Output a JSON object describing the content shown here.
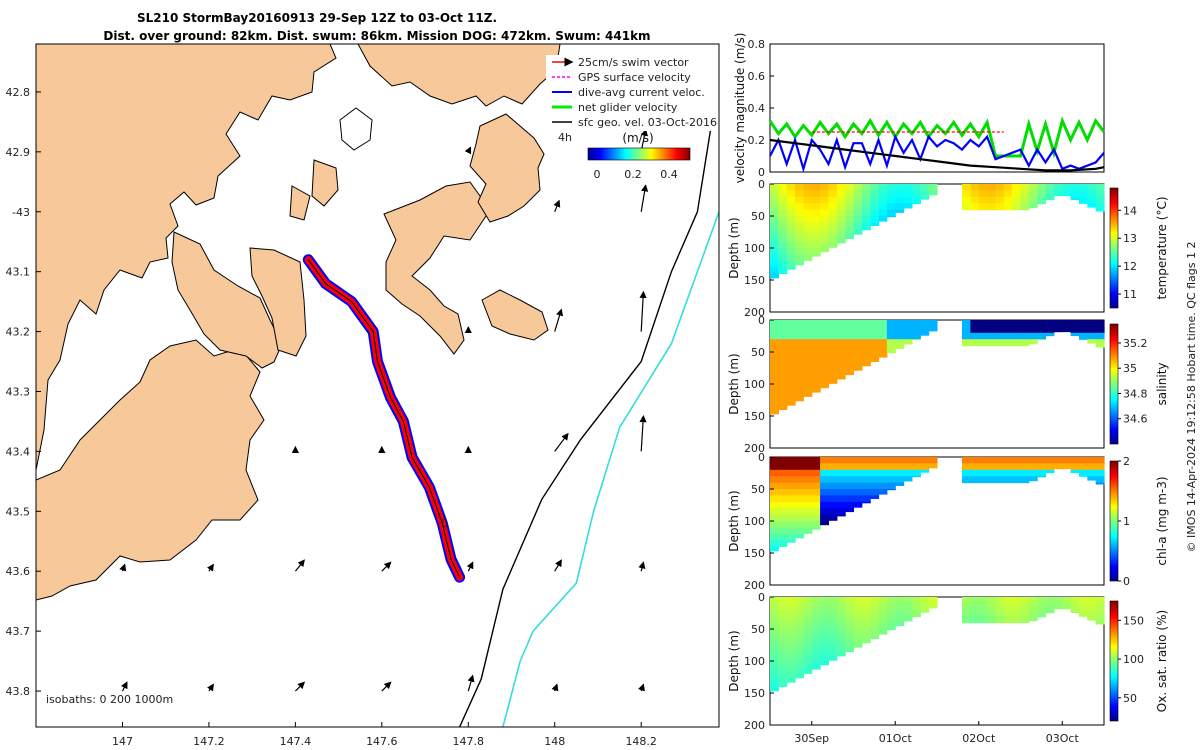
{
  "figure": {
    "title_line1": "SL210 StormBay20160913 29-Sep 12Z to 03-Oct 11Z.",
    "title_line2": "Dist. over ground: 82km. Dist. swum: 86km. Mission DOG: 472km. Swum: 441km",
    "credit": "© IMOS 14-Apr-2024 19:12:58 Hobart time. QC flags 1  2"
  },
  "chart_data": [
    {
      "type": "scatter",
      "name": "map",
      "xlim": [
        146.8,
        148.38
      ],
      "ylim": [
        -43.86,
        -42.72
      ],
      "x_ticks": [
        {
          "v": 147,
          "label": "147"
        },
        {
          "v": 147.2,
          "label": "147.2"
        },
        {
          "v": 147.4,
          "label": "147.4"
        },
        {
          "v": 147.6,
          "label": "147.6"
        },
        {
          "v": 147.8,
          "label": "147.8"
        },
        {
          "v": 148,
          "label": "148"
        },
        {
          "v": 148.2,
          "label": "148.2"
        }
      ],
      "y_ticks": [
        {
          "v": -42.8,
          "label": "42.8"
        },
        {
          "v": -42.9,
          "label": "42.9"
        },
        {
          "v": -43,
          "label": "-43"
        },
        {
          "v": -43.1,
          "label": "43.1"
        },
        {
          "v": -43.2,
          "label": "43.2"
        },
        {
          "v": -43.3,
          "label": "43.3"
        },
        {
          "v": -43.4,
          "label": "43.4"
        },
        {
          "v": -43.5,
          "label": "43.5"
        },
        {
          "v": -43.6,
          "label": "43.6"
        },
        {
          "v": -43.7,
          "label": "43.7"
        },
        {
          "v": -43.8,
          "label": "43.8"
        }
      ],
      "legend": {
        "placement": "top-right",
        "entries": [
          {
            "label": "25cm/s swim vector",
            "color": "#ff0000"
          },
          {
            "label": "GPS surface velocity",
            "color": "#ff00ff"
          },
          {
            "label": "dive-avg current veloc.",
            "color": "#0000ff"
          },
          {
            "label": "net glider velocity",
            "color": "#00ee00"
          },
          {
            "label": "sfc geo. vel. 03-Oct-2016",
            "color": "#000000"
          }
        ]
      },
      "colorbar": {
        "title": "(m/s)",
        "ticks": [
          "0",
          "0.2",
          "0.4"
        ],
        "range": [
          0,
          0.5
        ]
      },
      "time_marker": "4h",
      "end_marker": "0",
      "isobath_text": "isobaths: 0   200  1000m",
      "glider_track": [
        [
          147.43,
          -43.08
        ],
        [
          147.47,
          -43.12
        ],
        [
          147.53,
          -43.15
        ],
        [
          147.58,
          -43.2
        ],
        [
          147.59,
          -43.25
        ],
        [
          147.62,
          -43.31
        ],
        [
          147.65,
          -43.35
        ],
        [
          147.67,
          -43.41
        ],
        [
          147.71,
          -43.46
        ],
        [
          147.74,
          -43.52
        ],
        [
          147.76,
          -43.58
        ],
        [
          147.78,
          -43.61
        ]
      ],
      "isobath_200m": [
        [
          148.37,
          -42.82
        ],
        [
          148.33,
          -43.0
        ],
        [
          148.27,
          -43.1
        ],
        [
          148.2,
          -43.25
        ],
        [
          148.06,
          -43.38
        ],
        [
          147.97,
          -43.48
        ],
        [
          147.88,
          -43.63
        ],
        [
          147.83,
          -43.78
        ],
        [
          147.78,
          -43.86
        ]
      ],
      "isobath_1000m": [
        [
          148.38,
          -43.0
        ],
        [
          148.27,
          -43.22
        ],
        [
          148.15,
          -43.36
        ],
        [
          148.09,
          -43.5
        ],
        [
          148.05,
          -43.62
        ],
        [
          147.95,
          -43.7
        ],
        [
          147.92,
          -43.75
        ],
        [
          147.88,
          -43.86
        ]
      ],
      "sfc_vectors": [
        {
          "lon": 148.2,
          "lat": -42.9,
          "u": 0.02,
          "v": 0.1
        },
        {
          "lon": 148.2,
          "lat": -43.0,
          "u": 0.02,
          "v": 0.12
        },
        {
          "lon": 148.2,
          "lat": -43.2,
          "u": 0.01,
          "v": 0.18
        },
        {
          "lon": 148.2,
          "lat": -43.4,
          "u": 0.01,
          "v": 0.16
        },
        {
          "lon": 148.0,
          "lat": -43.0,
          "u": 0.02,
          "v": 0.05
        },
        {
          "lon": 148.0,
          "lat": -43.2,
          "u": 0.03,
          "v": 0.1
        },
        {
          "lon": 148.0,
          "lat": -43.4,
          "u": 0.06,
          "v": 0.08
        },
        {
          "lon": 148.0,
          "lat": -43.6,
          "u": 0.03,
          "v": 0.05
        },
        {
          "lon": 148.0,
          "lat": -43.8,
          "u": 0.01,
          "v": 0.03
        },
        {
          "lon": 148.2,
          "lat": -43.6,
          "u": 0.01,
          "v": 0.04
        },
        {
          "lon": 148.2,
          "lat": -43.8,
          "u": 0.01,
          "v": 0.03
        },
        {
          "lon": 147.8,
          "lat": -43.4,
          "u": 0.0,
          "v": 0.02
        },
        {
          "lon": 147.8,
          "lat": -43.6,
          "u": 0.02,
          "v": 0.04
        },
        {
          "lon": 147.8,
          "lat": -43.8,
          "u": 0.02,
          "v": 0.07
        },
        {
          "lon": 147.6,
          "lat": -43.4,
          "u": 0.0,
          "v": 0.02
        },
        {
          "lon": 147.6,
          "lat": -43.6,
          "u": 0.04,
          "v": 0.04
        },
        {
          "lon": 147.6,
          "lat": -43.8,
          "u": 0.04,
          "v": 0.04
        },
        {
          "lon": 147.4,
          "lat": -43.4,
          "u": 0.0,
          "v": 0.02
        },
        {
          "lon": 147.4,
          "lat": -43.6,
          "u": 0.04,
          "v": 0.05
        },
        {
          "lon": 147.4,
          "lat": -43.8,
          "u": 0.04,
          "v": 0.04
        },
        {
          "lon": 147.2,
          "lat": -43.6,
          "u": 0.02,
          "v": 0.03
        },
        {
          "lon": 147.2,
          "lat": -43.8,
          "u": 0.02,
          "v": 0.03
        },
        {
          "lon": 147.0,
          "lat": -43.6,
          "u": 0.01,
          "v": 0.03
        },
        {
          "lon": 147.0,
          "lat": -43.8,
          "u": 0.02,
          "v": 0.04
        },
        {
          "lon": 147.8,
          "lat": -42.9,
          "u": 0.01,
          "v": 0.02
        },
        {
          "lon": 147.8,
          "lat": -43.2,
          "u": 0.0,
          "v": 0.02
        },
        {
          "lon": 148.0,
          "lat": -42.8,
          "u": 0.0,
          "v": 0.02
        }
      ]
    },
    {
      "type": "line",
      "name": "velocity",
      "ylabel": "velocity magnitude (m/s)",
      "ylim": [
        0,
        0.8
      ],
      "y_ticks": [
        0,
        0.2,
        0.4,
        0.6,
        0.8
      ],
      "xlim": [
        0,
        4
      ],
      "series": [
        {
          "color": "#00dd00",
          "x": [
            0,
            0.1,
            0.2,
            0.3,
            0.4,
            0.5,
            0.6,
            0.7,
            0.8,
            0.9,
            1.0,
            1.1,
            1.2,
            1.3,
            1.4,
            1.5,
            1.6,
            1.7,
            1.8,
            1.9,
            2.0,
            2.1,
            2.2,
            2.3,
            2.4,
            2.5,
            2.6,
            2.7,
            2.8,
            2.9,
            3.0,
            3.1,
            3.2,
            3.3,
            3.4,
            3.5,
            3.6,
            3.7,
            3.8,
            3.9,
            4.0
          ],
          "values": [
            0.32,
            0.24,
            0.3,
            0.22,
            0.29,
            0.23,
            0.31,
            0.24,
            0.3,
            0.22,
            0.3,
            0.24,
            0.32,
            0.23,
            0.31,
            0.22,
            0.3,
            0.24,
            0.31,
            0.22,
            0.29,
            0.24,
            0.31,
            0.23,
            0.3,
            0.22,
            0.31,
            0.1,
            0.1,
            0.1,
            0.1,
            0.3,
            0.13,
            0.3,
            0.12,
            0.32,
            0.2,
            0.31,
            0.2,
            0.32,
            0.25
          ]
        },
        {
          "color": "#0000ff",
          "x": [
            0,
            0.1,
            0.2,
            0.3,
            0.4,
            0.5,
            0.6,
            0.7,
            0.8,
            0.9,
            1.0,
            1.1,
            1.2,
            1.3,
            1.4,
            1.5,
            1.6,
            1.7,
            1.8,
            1.9,
            2.0,
            2.1,
            2.2,
            2.3,
            2.4,
            2.5,
            2.6,
            2.7,
            2.8,
            2.9,
            3.0,
            3.1,
            3.2,
            3.3,
            3.4,
            3.5,
            3.6,
            3.7,
            3.8,
            3.9,
            4.0
          ],
          "values": [
            0.1,
            0.2,
            0.05,
            0.2,
            0.02,
            0.2,
            0.14,
            0.05,
            0.2,
            0.03,
            0.18,
            0.18,
            0.05,
            0.2,
            0.04,
            0.22,
            0.12,
            0.2,
            0.08,
            0.22,
            0.16,
            0.2,
            0.18,
            0.14,
            0.2,
            0.16,
            0.22,
            0.08,
            0.1,
            0.12,
            0.14,
            0.04,
            0.14,
            0.06,
            0.14,
            0.02,
            0.04,
            0.02,
            0.04,
            0.06,
            0.12
          ]
        },
        {
          "color": "#000000",
          "x": [
            0,
            0.3,
            0.6,
            0.9,
            1.2,
            1.5,
            1.8,
            2.1,
            2.4,
            2.7,
            3.0,
            3.3,
            3.6,
            3.9,
            4.0
          ],
          "values": [
            0.2,
            0.18,
            0.16,
            0.14,
            0.12,
            0.1,
            0.08,
            0.06,
            0.04,
            0.03,
            0.02,
            0.01,
            0.01,
            0.02,
            0.03
          ]
        },
        {
          "color": "#ff0000",
          "x": [
            0.5,
            2.8
          ],
          "values": [
            0.25,
            0.25
          ]
        }
      ]
    },
    {
      "type": "heatmap",
      "name": "temperature",
      "ylabel": "Depth (m)",
      "cbar_label": "temperature (°C)",
      "ylim": [
        200,
        0
      ],
      "y_ticks": [
        0,
        50,
        100,
        150,
        200
      ],
      "clim": [
        10.5,
        14.8
      ],
      "cbar_ticks": [
        11,
        12,
        13,
        14
      ]
    },
    {
      "type": "heatmap",
      "name": "salinity",
      "ylabel": "Depth (m)",
      "cbar_label": "salinity",
      "ylim": [
        200,
        0
      ],
      "y_ticks": [
        0,
        50,
        100,
        150,
        200
      ],
      "clim": [
        34.4,
        35.35
      ],
      "cbar_ticks": [
        34.6,
        34.8,
        35,
        35.2
      ]
    },
    {
      "type": "heatmap",
      "name": "chla",
      "ylabel": "Depth (m)",
      "cbar_label": "chl-a (mg m-3)",
      "ylim": [
        200,
        0
      ],
      "y_ticks": [
        0,
        50,
        100,
        150,
        200
      ],
      "clim": [
        0,
        2
      ],
      "cbar_ticks": [
        0,
        1,
        2
      ]
    },
    {
      "type": "heatmap",
      "name": "oxygen",
      "ylabel": "Depth (m)",
      "cbar_label": "Ox. sat. ratio (%)",
      "ylim": [
        200,
        0
      ],
      "y_ticks": [
        0,
        50,
        100,
        150,
        200
      ],
      "clim": [
        20,
        175
      ],
      "cbar_ticks": [
        50,
        100,
        150
      ],
      "x_ticks": [
        {
          "v": 0.5,
          "label": "30Sep"
        },
        {
          "v": 1.5,
          "label": "01Oct"
        },
        {
          "v": 2.5,
          "label": "02Oct"
        },
        {
          "v": 3.5,
          "label": "03Oct"
        }
      ]
    }
  ]
}
